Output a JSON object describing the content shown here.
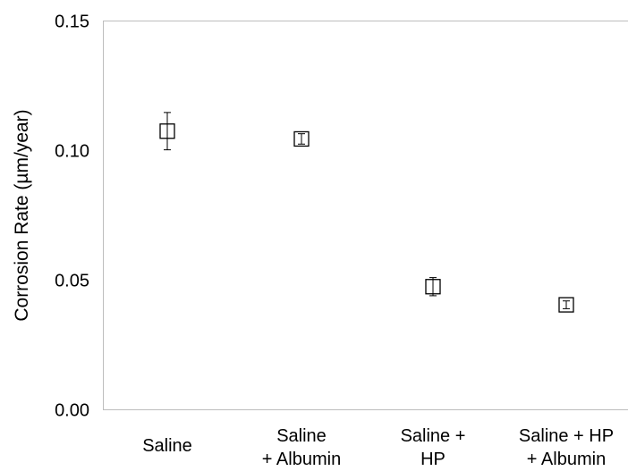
{
  "chart_data": {
    "type": "scatter",
    "title": "",
    "xlabel": "",
    "ylabel": "Corrosion Rate (µm/year)",
    "ylim": [
      0,
      0.15
    ],
    "yticks": [
      "0.00",
      "0.05",
      "0.10",
      "0.15"
    ],
    "ytick_values": [
      0,
      0.05,
      0.1,
      0.15
    ],
    "grid": false,
    "legend": "none",
    "marker": "open-square",
    "categories": [
      [
        "Saline"
      ],
      [
        "Saline",
        "+ Albumin"
      ],
      [
        "Saline +",
        "HP"
      ],
      [
        "Saline + HP",
        "+ Albumin"
      ]
    ],
    "values": [
      0.1075,
      0.1045,
      0.0475,
      0.0405
    ],
    "errors": [
      0.0072,
      0.002,
      0.0035,
      0.0015
    ]
  }
}
